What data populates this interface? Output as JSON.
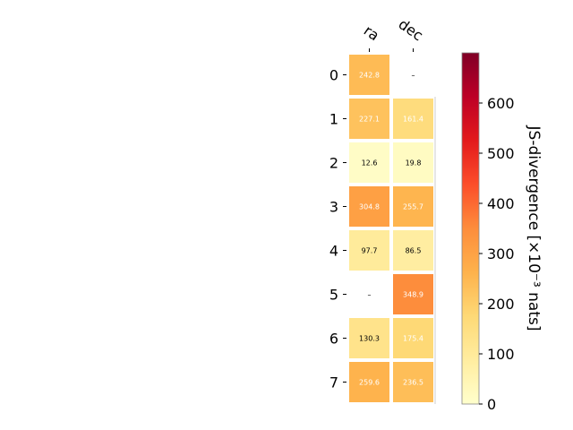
{
  "chart_data": {
    "type": "heatmap",
    "columns": [
      "ra",
      "dec"
    ],
    "rows": [
      "0",
      "1",
      "2",
      "3",
      "4",
      "5",
      "6",
      "7"
    ],
    "values": [
      [
        242.8,
        null
      ],
      [
        227.1,
        161.4
      ],
      [
        12.6,
        19.8
      ],
      [
        304.8,
        255.7
      ],
      [
        97.7,
        86.5
      ],
      [
        null,
        348.9
      ],
      [
        130.3,
        175.4
      ],
      [
        259.6,
        236.5
      ]
    ],
    "cell_labels": [
      [
        "242.8",
        "–"
      ],
      [
        "227.1",
        "161.4"
      ],
      [
        "12.6",
        "19.8"
      ],
      [
        "304.8",
        "255.7"
      ],
      [
        "97.7",
        "86.5"
      ],
      [
        "–",
        "348.9"
      ],
      [
        "130.3",
        "175.4"
      ],
      [
        "259.6",
        "236.5"
      ]
    ],
    "colorbar": {
      "label": "JS-divergence [×10⁻³ nats]",
      "range": [
        0,
        700
      ],
      "ticks": [
        0,
        100,
        200,
        300,
        400,
        500,
        600
      ],
      "colormap": "YlOrRd"
    },
    "grid": false
  }
}
